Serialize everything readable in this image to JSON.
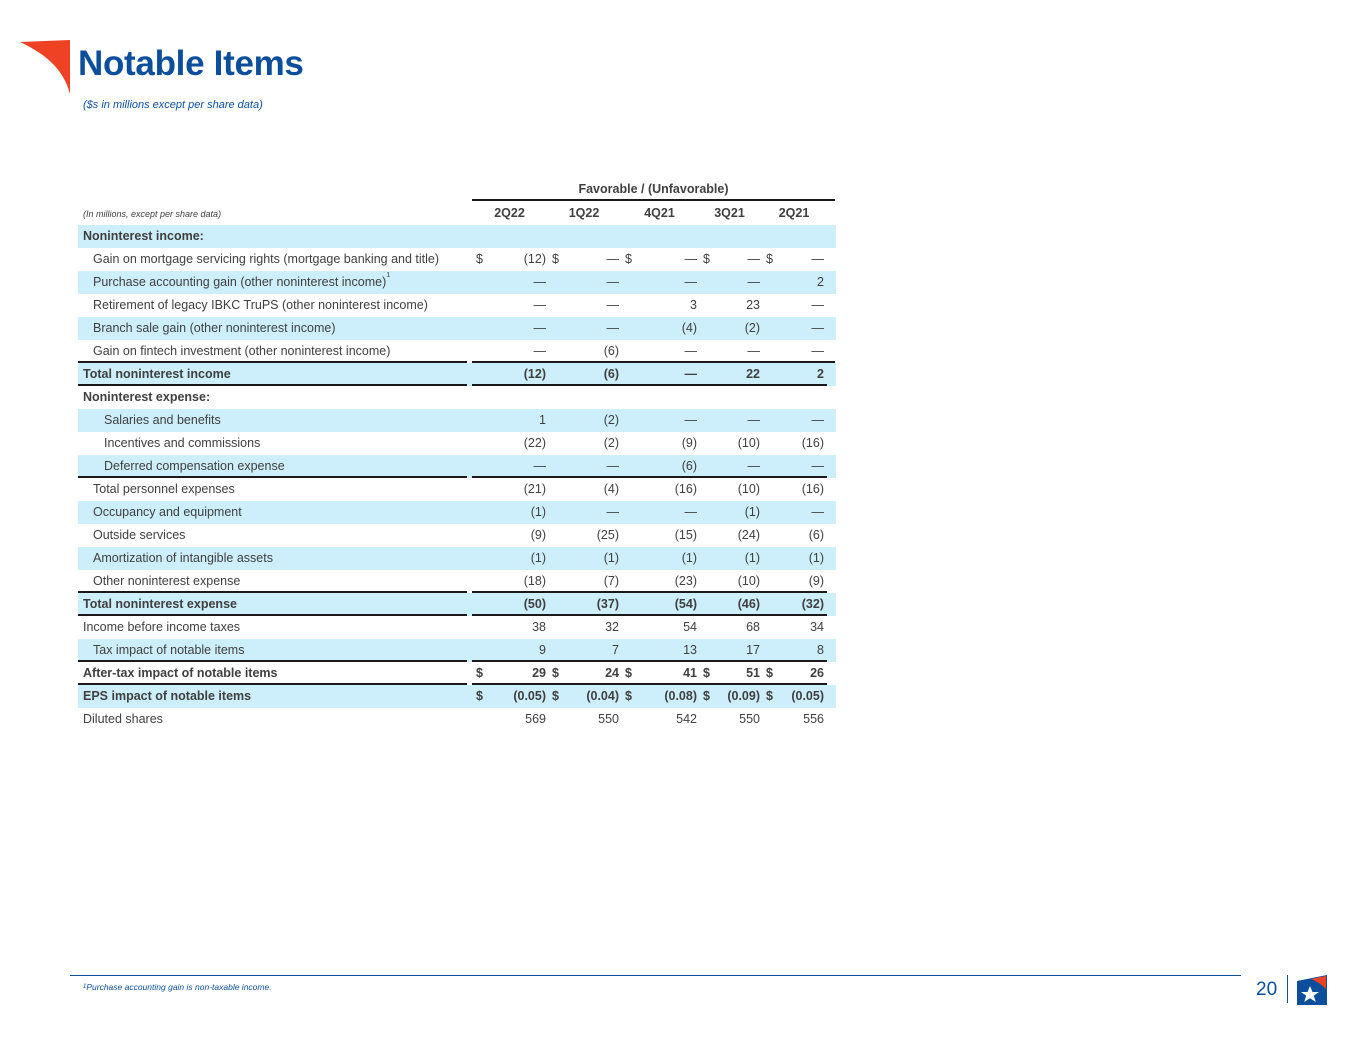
{
  "title": "Notable Items",
  "subtitle": "($s in millions except per share data)",
  "table": {
    "group_header": "Favorable / (Unfavorable)",
    "caption": "(In millions, except per share data)",
    "periods": [
      "2Q22",
      "1Q22",
      "4Q21",
      "3Q21",
      "2Q21"
    ],
    "rows": {
      "r0": {
        "label": "Noninterest income:"
      },
      "r1": {
        "label": "Gain on mortgage servicing rights (mortgage banking and title)",
        "cur": "$",
        "v": [
          "(12)",
          "—",
          "—",
          "—",
          "—"
        ]
      },
      "r2": {
        "label": "Purchase accounting gain (other noninterest income)",
        "sup": "1",
        "v": [
          "—",
          "—",
          "—",
          "—",
          "2"
        ]
      },
      "r3": {
        "label": "Retirement of legacy IBKC TruPS (other noninterest income)",
        "v": [
          "—",
          "—",
          "3",
          "23",
          "—"
        ]
      },
      "r4": {
        "label": "Branch sale gain (other noninterest income)",
        "v": [
          "—",
          "—",
          "(4)",
          "(2)",
          "—"
        ]
      },
      "r5": {
        "label": "Gain on fintech investment (other noninterest income)",
        "v": [
          "—",
          "(6)",
          "—",
          "—",
          "—"
        ]
      },
      "r6": {
        "label": "Total noninterest income",
        "v": [
          "(12)",
          "(6)",
          "—",
          "22",
          "2"
        ]
      },
      "r7": {
        "label": "Noninterest expense:"
      },
      "r8": {
        "label": "Salaries and benefits",
        "v": [
          "1",
          "(2)",
          "—",
          "—",
          "—"
        ]
      },
      "r9": {
        "label": "Incentives and commissions",
        "v": [
          "(22)",
          "(2)",
          "(9)",
          "(10)",
          "(16)"
        ]
      },
      "r10": {
        "label": "Deferred compensation expense",
        "v": [
          "—",
          "—",
          "(6)",
          "—",
          "—"
        ]
      },
      "r11": {
        "label": "Total personnel expenses",
        "v": [
          "(21)",
          "(4)",
          "(16)",
          "(10)",
          "(16)"
        ]
      },
      "r12": {
        "label": "Occupancy and equipment",
        "v": [
          "(1)",
          "—",
          "—",
          "(1)",
          "—"
        ]
      },
      "r13": {
        "label": "Outside services",
        "v": [
          "(9)",
          "(25)",
          "(15)",
          "(24)",
          "(6)"
        ]
      },
      "r14": {
        "label": "Amortization of intangible assets",
        "v": [
          "(1)",
          "(1)",
          "(1)",
          "(1)",
          "(1)"
        ]
      },
      "r15": {
        "label": "Other noninterest expense",
        "v": [
          "(18)",
          "(7)",
          "(23)",
          "(10)",
          "(9)"
        ]
      },
      "r16": {
        "label": "Total noninterest expense",
        "v": [
          "(50)",
          "(37)",
          "(54)",
          "(46)",
          "(32)"
        ]
      },
      "r17": {
        "label": "Income before income taxes",
        "v": [
          "38",
          "32",
          "54",
          "68",
          "34"
        ]
      },
      "r18": {
        "label": "Tax impact of notable items",
        "v": [
          "9",
          "7",
          "13",
          "17",
          "8"
        ]
      },
      "r19": {
        "label": "After-tax impact of notable items",
        "cur": "$",
        "v": [
          "29",
          "24",
          "41",
          "51",
          "26"
        ]
      },
      "r20": {
        "label": "EPS impact of notable items",
        "cur": "$",
        "v": [
          "(0.05)",
          "(0.04)",
          "(0.08)",
          "(0.09)",
          "(0.05)"
        ]
      },
      "r21": {
        "label": "Diluted shares",
        "v": [
          "569",
          "550",
          "542",
          "550",
          "556"
        ]
      }
    }
  },
  "footnote": {
    "sup": "1",
    "text": "Purchase accounting gain is non-taxable income."
  },
  "page_number": "20",
  "colors": {
    "brand_blue": "#0b4f9c",
    "logo_red": "#ef4123",
    "row_shade": "#cdeefb"
  }
}
